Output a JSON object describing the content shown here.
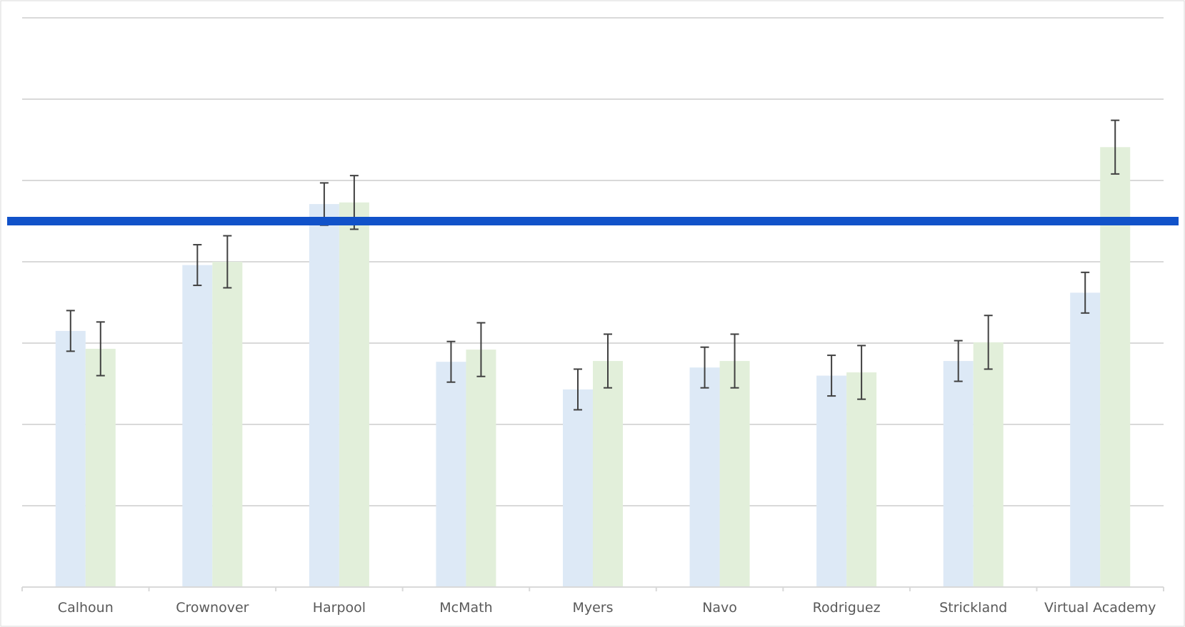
{
  "chart_data": {
    "type": "bar",
    "title": "",
    "xlabel": "",
    "ylabel": "",
    "categories": [
      "Calhoun",
      "Crownover",
      "Harpool",
      "McMath",
      "Myers",
      "Navo",
      "Rodriguez",
      "Strickland",
      "Virtual Academy"
    ],
    "ylim": [
      0,
      7
    ],
    "grid": true,
    "legend": "none",
    "series": [
      {
        "color": "#dde9f6",
        "values": [
          3.15,
          3.96,
          4.71,
          2.77,
          2.43,
          2.7,
          2.6,
          2.78,
          3.62
        ],
        "error": [
          0.25,
          0.25,
          0.26,
          0.25,
          0.25,
          0.25,
          0.25,
          0.25,
          0.25
        ]
      },
      {
        "color": "#e2efda",
        "values": [
          2.93,
          4.0,
          4.73,
          2.92,
          2.78,
          2.78,
          2.64,
          3.01,
          5.41
        ],
        "error": [
          0.33,
          0.32,
          0.33,
          0.33,
          0.33,
          0.33,
          0.33,
          0.33,
          0.33
        ]
      }
    ],
    "reference_line": {
      "value": 4.5,
      "color": "#1152c9"
    },
    "errorbar_color": "#404040",
    "gridline_color": "#d9d9d9"
  }
}
